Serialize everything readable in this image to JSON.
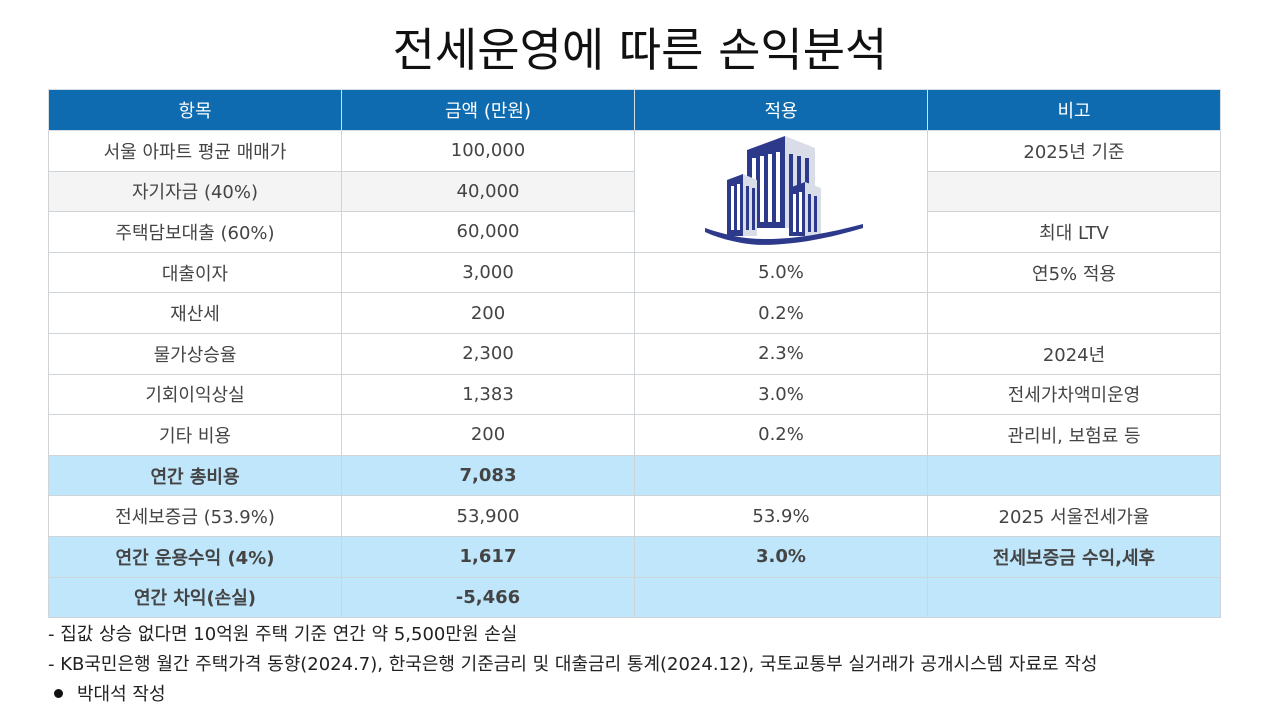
{
  "title": "전세운영에 따른 손익분석",
  "table": {
    "headers": [
      "항목",
      "금액 (만원)",
      "적용",
      "비고"
    ],
    "rows": [
      {
        "item": "서울 아파트 평균 매매가",
        "amount": "100,000",
        "apply": "",
        "note": "2025년 기준"
      },
      {
        "item": "자기자금 (40%)",
        "amount": "40,000",
        "apply": "",
        "note": ""
      },
      {
        "item": "주택담보대출 (60%)",
        "amount": "60,000",
        "apply": "",
        "note": "최대 LTV"
      },
      {
        "item": "대출이자",
        "amount": "3,000",
        "apply": "5.0%",
        "note": "연5% 적용"
      },
      {
        "item": "재산세",
        "amount": "200",
        "apply": "0.2%",
        "note": ""
      },
      {
        "item": "물가상승율",
        "amount": "2,300",
        "apply": "2.3%",
        "note": "2024년"
      },
      {
        "item": "기회이익상실",
        "amount": "1,383",
        "apply": "3.0%",
        "note": "전세가차액미운영"
      },
      {
        "item": "기타 비용",
        "amount": "200",
        "apply": "0.2%",
        "note": "관리비, 보험료 등"
      },
      {
        "item": "연간 총비용",
        "amount": "7,083",
        "apply": "",
        "note": ""
      },
      {
        "item": "전세보증금 (53.9%)",
        "amount": "53,900",
        "apply": "53.9%",
        "note": "2025 서울전세가율"
      },
      {
        "item": "연간 운용수익 (4%)",
        "amount": "1,617",
        "apply": "3.0%",
        "note": "전세보증금 수익,세후"
      },
      {
        "item": "연간 차익(손실)",
        "amount": "-5,466",
        "apply": "",
        "note": ""
      }
    ]
  },
  "notes": [
    "- 집값 상승 없다면 10억원 주택 기준 연간 약 5,500만원 손실",
    "- KB국민은행 월간 주택가격 동향(2024.7), 한국은행 기준금리 및  대출금리 통계(2024.12), 국토교통부 실거래가 공개시스템 자료로 작성"
  ],
  "author": "박대석 작성",
  "colors": {
    "header_bg": "#0f6bb0",
    "highlight_bg": "#bfe6fb",
    "negative_text": "#a83a1c",
    "building_navy": "#2d3a8c"
  },
  "icons": [
    "building-icon"
  ]
}
